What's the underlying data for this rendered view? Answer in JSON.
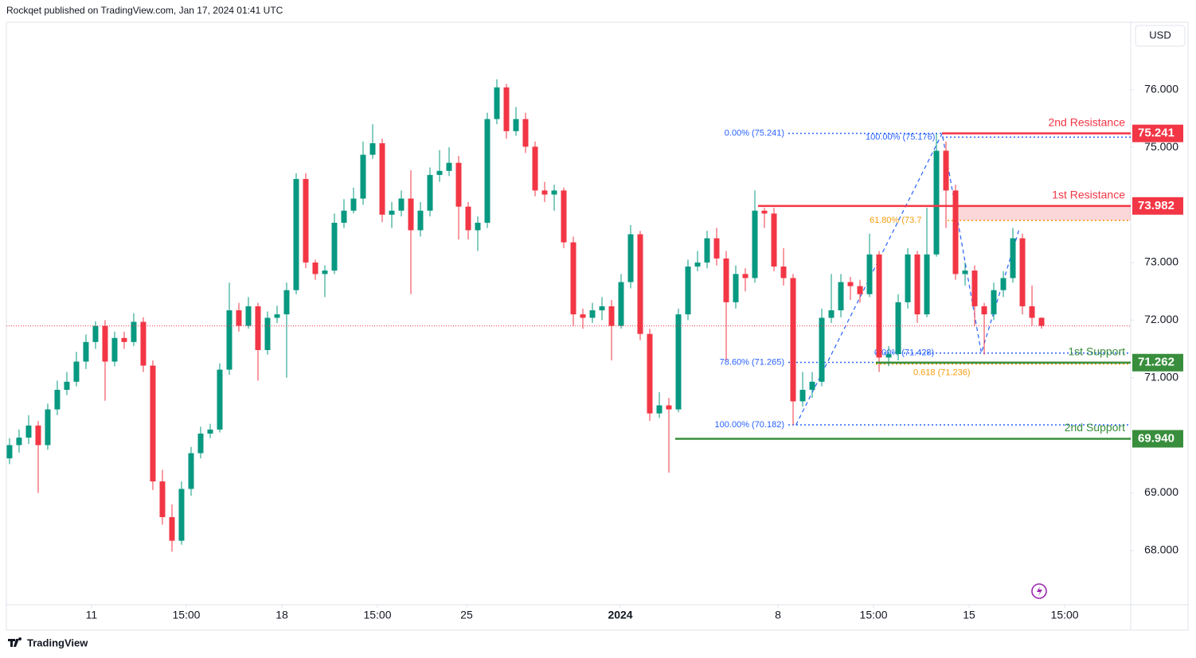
{
  "header": "Rockqet published on TradingView.com, Jan 17, 2024 01:41 UTC",
  "currency": "USD",
  "brand": "TradingView",
  "chart_data": {
    "type": "candlestick",
    "up_color": "#089981",
    "down_color": "#f23645",
    "open": [
      69.6,
      69.83,
      69.96,
      70.17,
      69.83,
      70.45,
      70.79,
      70.93,
      71.28,
      71.62,
      71.9,
      71.28,
      71.69,
      71.62,
      71.97,
      71.21,
      69.2,
      68.58,
      68.17,
      69.07,
      69.69,
      70.03,
      70.1,
      71.14,
      72.17,
      71.9,
      72.24,
      71.48,
      72.04,
      72.1,
      72.52,
      74.45,
      73.0,
      72.8,
      72.86,
      73.69,
      73.9,
      74.11,
      74.87,
      75.07,
      73.83,
      73.9,
      74.11,
      73.56,
      73.9,
      74.52,
      74.59,
      74.73,
      73.97,
      73.56,
      73.69,
      75.49,
      76.04,
      75.28,
      75.49,
      75.01,
      74.25,
      74.18,
      74.25,
      73.35,
      72.1,
      72.04,
      72.17,
      72.24,
      71.9,
      72.66,
      73.49,
      71.76,
      70.38,
      70.52,
      70.45,
      72.1,
      72.93,
      73.0,
      73.42,
      73.07,
      72.31,
      72.8,
      72.73,
      73.9,
      73.85,
      72.93,
      72.73,
      70.59,
      70.79,
      70.93,
      72.04,
      72.17,
      72.66,
      72.59,
      72.45,
      73.14,
      71.35,
      71.41,
      72.31,
      73.14,
      72.1,
      73.14,
      74.94,
      74.25,
      72.8,
      72.86,
      72.24,
      72.1,
      72.52,
      72.73,
      73.42,
      72.24,
      72.04
    ],
    "high": [
      69.95,
      70.1,
      70.35,
      70.25,
      70.55,
      70.95,
      71.1,
      71.45,
      71.75,
      71.98,
      72.0,
      71.8,
      71.8,
      72.12,
      72.05,
      71.3,
      69.4,
      68.8,
      69.2,
      69.8,
      70.15,
      70.2,
      71.25,
      72.65,
      72.3,
      72.4,
      72.3,
      72.15,
      72.25,
      72.65,
      74.55,
      74.55,
      73.05,
      72.95,
      73.85,
      74.1,
      74.3,
      75.1,
      75.4,
      75.15,
      74.05,
      74.25,
      74.6,
      74.05,
      74.65,
      74.95,
      75.0,
      74.85,
      74.05,
      73.8,
      75.6,
      76.18,
      76.1,
      75.7,
      75.6,
      75.1,
      74.4,
      74.35,
      74.3,
      73.45,
      72.2,
      72.3,
      72.4,
      72.35,
      72.8,
      73.65,
      73.55,
      71.85,
      70.75,
      70.65,
      72.2,
      73.05,
      73.2,
      73.55,
      73.6,
      73.2,
      72.95,
      72.9,
      74.25,
      73.95,
      73.95,
      73.25,
      72.8,
      71.1,
      71.1,
      72.2,
      72.8,
      72.8,
      72.75,
      72.7,
      73.5,
      73.2,
      71.55,
      72.45,
      73.25,
      73.2,
      73.95,
      75.24,
      75.1,
      74.35,
      73.0,
      72.95,
      72.3,
      72.65,
      72.85,
      73.6,
      73.5,
      72.6,
      72.05
    ],
    "low": [
      69.5,
      69.7,
      69.85,
      69.0,
      69.75,
      70.35,
      70.7,
      70.85,
      71.15,
      71.5,
      70.6,
      71.2,
      71.5,
      71.55,
      71.1,
      69.05,
      68.45,
      67.98,
      68.1,
      68.95,
      69.6,
      69.95,
      70.05,
      71.05,
      71.8,
      71.85,
      70.95,
      71.4,
      71.95,
      71.0,
      72.45,
      72.9,
      72.7,
      72.4,
      72.8,
      73.6,
      73.85,
      74.0,
      74.8,
      73.7,
      73.6,
      73.8,
      72.45,
      73.45,
      73.8,
      74.4,
      74.5,
      73.4,
      73.4,
      73.2,
      73.6,
      75.4,
      75.15,
      75.2,
      74.9,
      74.15,
      74.05,
      73.9,
      73.25,
      71.9,
      71.85,
      71.95,
      72.0,
      71.3,
      71.85,
      72.55,
      71.65,
      70.25,
      70.3,
      69.35,
      70.4,
      72.0,
      72.85,
      72.9,
      72.95,
      71.3,
      72.2,
      72.5,
      72.65,
      73.6,
      72.85,
      72.6,
      70.18,
      70.5,
      70.65,
      70.85,
      71.95,
      72.05,
      72.35,
      72.3,
      72.4,
      71.1,
      71.2,
      71.3,
      72.2,
      71.95,
      72.05,
      73.1,
      73.6,
      72.7,
      72.6,
      71.9,
      71.4,
      72.0,
      72.4,
      72.65,
      72.1,
      71.9,
      71.85
    ],
    "close": [
      69.83,
      69.96,
      70.17,
      69.83,
      70.45,
      70.79,
      70.93,
      71.28,
      71.62,
      71.9,
      71.28,
      71.69,
      71.62,
      71.97,
      71.21,
      69.2,
      68.58,
      68.17,
      69.07,
      69.69,
      70.03,
      70.1,
      71.14,
      72.17,
      71.9,
      72.24,
      71.48,
      72.04,
      72.1,
      72.52,
      74.45,
      73.0,
      72.8,
      72.86,
      73.69,
      73.9,
      74.11,
      74.87,
      75.07,
      73.83,
      73.9,
      74.11,
      73.56,
      73.9,
      74.52,
      74.59,
      74.73,
      73.97,
      73.56,
      73.69,
      75.49,
      76.04,
      75.28,
      75.49,
      75.01,
      74.25,
      74.18,
      74.25,
      73.35,
      72.1,
      72.04,
      72.17,
      72.24,
      71.9,
      72.66,
      73.49,
      71.76,
      70.38,
      70.52,
      70.45,
      72.1,
      72.93,
      73.0,
      73.42,
      73.07,
      72.31,
      72.8,
      72.73,
      73.9,
      73.85,
      72.93,
      72.73,
      70.59,
      70.79,
      70.93,
      72.04,
      72.17,
      72.66,
      72.59,
      72.45,
      73.14,
      71.35,
      71.41,
      72.31,
      73.14,
      72.1,
      73.14,
      74.94,
      74.25,
      72.8,
      72.86,
      72.24,
      72.1,
      72.52,
      72.73,
      73.42,
      72.24,
      72.04,
      71.9
    ],
    "xlim": [
      -0.33,
      117.33
    ],
    "ylim": [
      67.06,
      77.17
    ],
    "xticks": [
      {
        "value": 8.58,
        "label": "11"
      },
      {
        "value": 18.5,
        "label": "15:00"
      },
      {
        "value": 28.5,
        "label": "18"
      },
      {
        "value": 38.5,
        "label": "15:00"
      },
      {
        "value": 47.83,
        "label": "25"
      },
      {
        "value": 63.92,
        "label": "2024"
      },
      {
        "value": 80.42,
        "label": "8"
      },
      {
        "value": 90.42,
        "label": "15:00"
      },
      {
        "value": 100.42,
        "label": "15"
      },
      {
        "value": 110.42,
        "label": "15:00"
      }
    ],
    "yticks": [
      {
        "value": 76,
        "label": "76.000"
      },
      {
        "value": 75,
        "label": "75.000"
      },
      {
        "value": 73,
        "label": "73.000"
      },
      {
        "value": 72,
        "label": "72.000"
      },
      {
        "value": 71,
        "label": "71.000"
      },
      {
        "value": 69,
        "label": "69.000"
      },
      {
        "value": 68,
        "label": "68.000"
      }
    ],
    "levels": [
      {
        "name": "2nd Resistance",
        "value": 75.241,
        "value_label": "75.241",
        "color": "#f23645"
      },
      {
        "name": "1st Resistance",
        "value": 73.982,
        "value_label": "73.982",
        "color": "#f23645"
      },
      {
        "name": "1st Support",
        "value": 71.262,
        "value_label": "71.262",
        "color": "#388e3c"
      },
      {
        "name": "2nd Support",
        "value": 69.94,
        "value_label": "69.940",
        "color": "#388e3c"
      }
    ],
    "fib_levels": [
      {
        "label": "0.00% (75.241)",
        "value": 75.241,
        "color": "#2962ff"
      },
      {
        "label": "100.00% (75.176)",
        "value": 75.176,
        "color": "#2962ff"
      },
      {
        "label": "61.80% (73.7",
        "value": 73.73,
        "color": "#f59d0d"
      },
      {
        "label": "78.60% (71.265)",
        "value": 71.265,
        "color": "#2962ff"
      },
      {
        "label": "0.00% (71.428)",
        "value": 71.428,
        "color": "#2962ff"
      },
      {
        "label": "0.618 (71.236)",
        "value": 71.236,
        "color": "#f59d0d"
      },
      {
        "label": "100.00% (70.182)",
        "value": 70.182,
        "color": "#2962ff"
      }
    ],
    "zigzag": {
      "x": [
        82.3,
        97.6,
        101.7,
        105.7
      ],
      "values": [
        70.18,
        75.24,
        71.43,
        73.6
      ],
      "color": "#2962ff"
    }
  }
}
